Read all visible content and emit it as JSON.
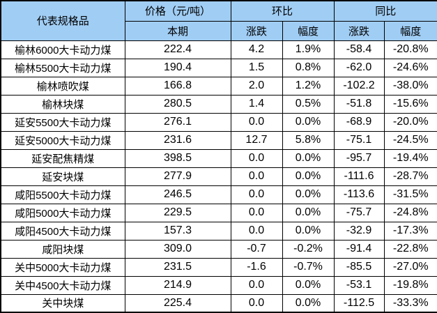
{
  "colors": {
    "header_bg": "#a0cdf4",
    "body_bg": "#ffffff",
    "border": "#000000",
    "text": "#000000"
  },
  "chart_data": {
    "type": "table",
    "header": {
      "product": "代表规格品",
      "price_group": "价格（元/吨）",
      "price_current": "本期",
      "mom_group": "环比",
      "yoy_group": "同比",
      "mom_change": "涨跌",
      "mom_rate": "幅度",
      "yoy_change": "涨跌",
      "yoy_rate": "幅度"
    },
    "rows": [
      {
        "name": "榆林6000大卡动力煤",
        "price": "222.4",
        "mom_change": "4.2",
        "mom_rate": "1.9%",
        "yoy_change": "-58.4",
        "yoy_rate": "-20.8%"
      },
      {
        "name": "榆林5500大卡动力煤",
        "price": "190.4",
        "mom_change": "1.5",
        "mom_rate": "0.8%",
        "yoy_change": "-62.0",
        "yoy_rate": "-24.6%"
      },
      {
        "name": "榆林喷吹煤",
        "price": "166.8",
        "mom_change": "2.0",
        "mom_rate": "1.2%",
        "yoy_change": "-102.2",
        "yoy_rate": "-38.0%"
      },
      {
        "name": "榆林块煤",
        "price": "280.5",
        "mom_change": "1.4",
        "mom_rate": "0.5%",
        "yoy_change": "-51.8",
        "yoy_rate": "-15.6%"
      },
      {
        "name": "延安5500大卡动力煤",
        "price": "276.1",
        "mom_change": "0.0",
        "mom_rate": "0.0%",
        "yoy_change": "-68.9",
        "yoy_rate": "-20.0%"
      },
      {
        "name": "延安5000大卡动力煤",
        "price": "231.6",
        "mom_change": "12.7",
        "mom_rate": "5.8%",
        "yoy_change": "-75.1",
        "yoy_rate": "-24.5%"
      },
      {
        "name": "延安配焦精煤",
        "price": "398.5",
        "mom_change": "0.0",
        "mom_rate": "0.0%",
        "yoy_change": "-95.7",
        "yoy_rate": "-19.4%"
      },
      {
        "name": "延安块煤",
        "price": "277.9",
        "mom_change": "0.0",
        "mom_rate": "0.0%",
        "yoy_change": "-111.6",
        "yoy_rate": "-28.7%"
      },
      {
        "name": "咸阳5500大卡动力煤",
        "price": "246.5",
        "mom_change": "0.0",
        "mom_rate": "0.0%",
        "yoy_change": "-113.6",
        "yoy_rate": "-31.5%"
      },
      {
        "name": "咸阳5000大卡动力煤",
        "price": "229.5",
        "mom_change": "0.0",
        "mom_rate": "0.0%",
        "yoy_change": "-75.7",
        "yoy_rate": "-24.8%"
      },
      {
        "name": "咸阳4500大卡动力煤",
        "price": "157.3",
        "mom_change": "0.0",
        "mom_rate": "0.0%",
        "yoy_change": "-32.9",
        "yoy_rate": "-17.3%"
      },
      {
        "name": "咸阳块煤",
        "price": "309.0",
        "mom_change": "-0.7",
        "mom_rate": "-0.2%",
        "yoy_change": "-91.4",
        "yoy_rate": "-22.8%"
      },
      {
        "name": "关中5000大卡动力煤",
        "price": "231.5",
        "mom_change": "-1.6",
        "mom_rate": "-0.7%",
        "yoy_change": "-85.5",
        "yoy_rate": "-27.0%"
      },
      {
        "name": "关中4500大卡动力煤",
        "price": "214.9",
        "mom_change": "0.0",
        "mom_rate": "0.0%",
        "yoy_change": "-53.1",
        "yoy_rate": "-19.8%"
      },
      {
        "name": "关中块煤",
        "price": "225.4",
        "mom_change": "0.0",
        "mom_rate": "0.0%",
        "yoy_change": "-112.5",
        "yoy_rate": "-33.3%"
      }
    ]
  }
}
